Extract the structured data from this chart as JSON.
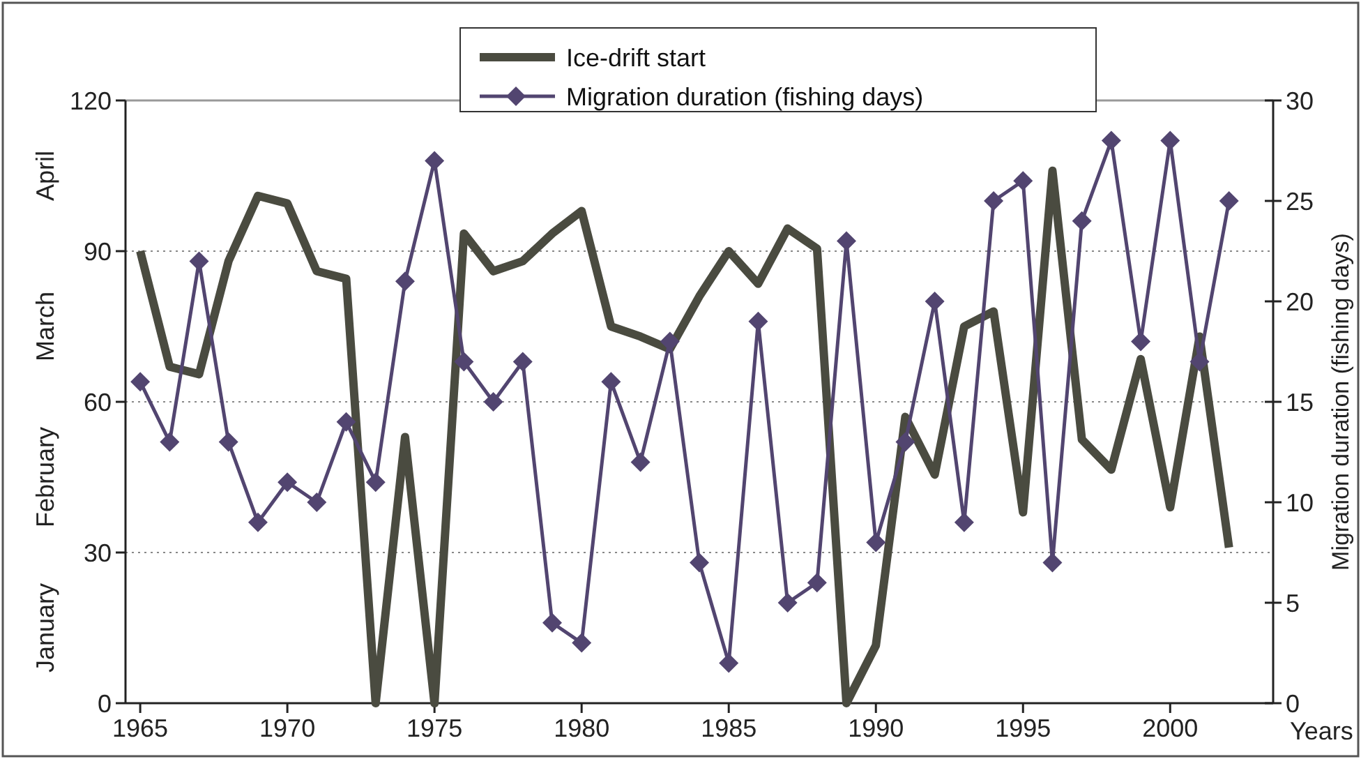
{
  "chart_data": {
    "type": "line",
    "xlabel": "Years",
    "y2label": "Migration duration (fishing days)",
    "x": [
      1965,
      1966,
      1967,
      1968,
      1969,
      1970,
      1971,
      1972,
      1973,
      1974,
      1975,
      1976,
      1977,
      1978,
      1979,
      1980,
      1981,
      1982,
      1983,
      1984,
      1985,
      1986,
      1987,
      1988,
      1989,
      1990,
      1991,
      1992,
      1993,
      1994,
      1995,
      1996,
      1997,
      1998,
      1999,
      2000,
      2001,
      2002
    ],
    "series": [
      {
        "name": "Ice-drift start",
        "color": "#4a4b40",
        "line_style": "solid",
        "marker": "none",
        "values": [
          90,
          67,
          65.5,
          88,
          101,
          99.5,
          86,
          84.5,
          0,
          53,
          0,
          93.5,
          86,
          88,
          93.5,
          98,
          75,
          73,
          70.5,
          81,
          90,
          83.5,
          94.5,
          90.5,
          0,
          11.5,
          57,
          45.5,
          75,
          78,
          38,
          106,
          52.5,
          46.5,
          68.5,
          39,
          73,
          31
        ]
      },
      {
        "name": "Migration duration (fishing days)",
        "color": "#524570",
        "axis": "y2",
        "marker": "diamond",
        "line_style": "solid",
        "values": [
          16,
          13,
          22,
          13,
          9,
          11,
          10,
          14,
          11,
          21,
          27,
          17,
          15,
          17,
          4,
          3,
          16,
          12,
          18,
          7,
          2,
          19,
          5,
          6,
          23,
          8,
          13,
          20,
          9,
          25,
          26,
          7,
          24,
          28,
          18,
          28,
          17,
          25
        ]
      }
    ],
    "xlim": [
      1964.5,
      2003.5
    ],
    "xticks": [
      1965,
      1970,
      1975,
      1980,
      1985,
      1990,
      1995,
      2000
    ],
    "ylim": [
      0,
      120
    ],
    "yticks": [
      0,
      30,
      60,
      90,
      120
    ],
    "y2lim": [
      0,
      30
    ],
    "y2ticks": [
      0,
      5,
      10,
      15,
      20,
      25,
      30
    ],
    "annotations": [
      "January",
      "February",
      "March",
      "April"
    ],
    "grid": "y",
    "legend": "top"
  }
}
